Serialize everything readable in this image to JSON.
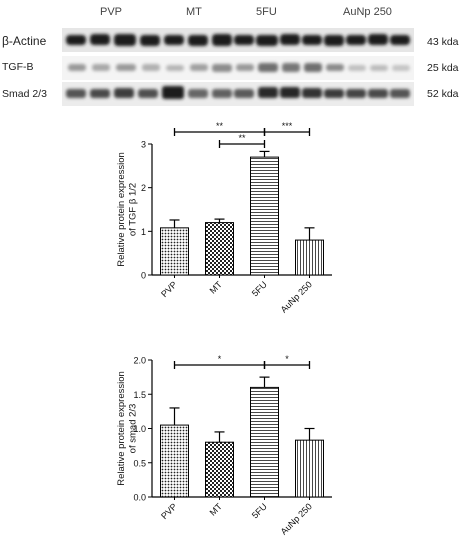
{
  "blot": {
    "groups": [
      "PVP",
      "MT",
      "5FU",
      "AuNp 250"
    ],
    "rows": [
      {
        "protein": "β-Actine",
        "size": "43 kda"
      },
      {
        "protein": "TGF-B",
        "size": "25 kda"
      },
      {
        "protein": "Smad 2/3",
        "size": "52 kda"
      }
    ]
  },
  "chart_data": [
    {
      "type": "bar",
      "title": "",
      "categories": [
        "PVP",
        "MT",
        "5FU",
        "AuNp 250"
      ],
      "values": [
        1.08,
        1.2,
        2.7,
        0.8
      ],
      "errors": [
        0.18,
        0.08,
        0.13,
        0.28
      ],
      "ylabel": "Relative protein expression of TGF β 1/2",
      "ylim": [
        0,
        3
      ],
      "yticks": [
        "0",
        "1",
        "2",
        "3"
      ],
      "patterns": [
        "dots",
        "checker",
        "horizontal-lines",
        "vertical-lines"
      ],
      "significance": [
        {
          "from": "PVP",
          "to": "5FU",
          "label": "**"
        },
        {
          "from": "MT",
          "to": "5FU",
          "label": "**"
        },
        {
          "from": "5FU",
          "to": "AuNp 250",
          "label": "***"
        }
      ]
    },
    {
      "type": "bar",
      "title": "",
      "categories": [
        "PVP",
        "MT",
        "5FU",
        "AuNp 250"
      ],
      "values": [
        1.05,
        0.8,
        1.6,
        0.83
      ],
      "errors": [
        0.25,
        0.15,
        0.15,
        0.17
      ],
      "ylabel": "Relative protein expression of smad 2/3",
      "ylim": [
        0,
        2
      ],
      "yticks": [
        "0.0",
        "0.5",
        "1.0",
        "1.5",
        "2.0"
      ],
      "patterns": [
        "dots",
        "checker",
        "horizontal-lines",
        "vertical-lines"
      ],
      "significance": [
        {
          "from": "PVP",
          "to": "5FU",
          "label": "*"
        },
        {
          "from": "5FU",
          "to": "AuNp 250",
          "label": "*"
        }
      ]
    }
  ]
}
